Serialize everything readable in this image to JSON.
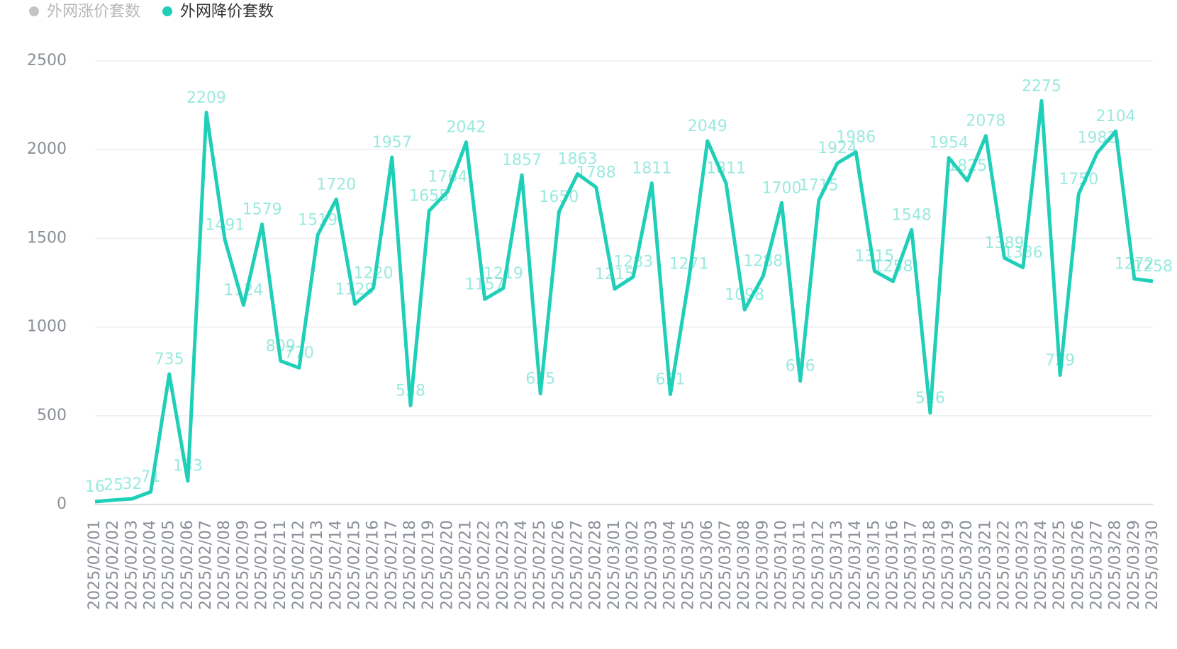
{
  "chart_data": {
    "type": "line",
    "legend_hidden": [
      {
        "name": "外网涨价套数",
        "color": "#c4c4c4"
      }
    ],
    "x": [
      "2025/02/01",
      "2025/02/02",
      "2025/02/03",
      "2025/02/04",
      "2025/02/05",
      "2025/02/06",
      "2025/02/07",
      "2025/02/08",
      "2025/02/09",
      "2025/02/10",
      "2025/02/11",
      "2025/02/12",
      "2025/02/13",
      "2025/02/14",
      "2025/02/15",
      "2025/02/16",
      "2025/02/17",
      "2025/02/18",
      "2025/02/19",
      "2025/02/20",
      "2025/02/21",
      "2025/02/22",
      "2025/02/23",
      "2025/02/24",
      "2025/02/25",
      "2025/02/26",
      "2025/02/27",
      "2025/02/28",
      "2025/03/01",
      "2025/03/02",
      "2025/03/03",
      "2025/03/04",
      "2025/03/05",
      "2025/03/06",
      "2025/03/07",
      "2025/03/08",
      "2025/03/09",
      "2025/03/10",
      "2025/03/11",
      "2025/03/12",
      "2025/03/13",
      "2025/03/14",
      "2025/03/15",
      "2025/03/16",
      "2025/03/17",
      "2025/03/18",
      "2025/03/19",
      "2025/03/20",
      "2025/03/21",
      "2025/03/22",
      "2025/03/23",
      "2025/03/24",
      "2025/03/25",
      "2025/03/26",
      "2025/03/27",
      "2025/03/28",
      "2025/03/29",
      "2025/03/30"
    ],
    "series": [
      {
        "name": "外网降价套数",
        "color": "#1fcfb8",
        "values": [
          16,
          25,
          32,
          71,
          735,
          133,
          2209,
          1491,
          1124,
          1579,
          809,
          770,
          1519,
          1720,
          1129,
          1220,
          1957,
          558,
          1655,
          1764,
          2042,
          1157,
          1219,
          1857,
          625,
          1650,
          1863,
          1788,
          1215,
          1283,
          1811,
          621,
          1271,
          2049,
          1811,
          1098,
          1288,
          1700,
          696,
          1715,
          1924,
          1986,
          1315,
          1258,
          1548,
          516,
          1954,
          1825,
          2078,
          1389,
          1336,
          2275,
          729,
          1750,
          1982,
          2104,
          1272,
          1258
        ]
      }
    ],
    "ylim": [
      0,
      2500
    ],
    "yticks": [
      0,
      500,
      1000,
      1500,
      2000,
      2500
    ],
    "grid": true,
    "legend": "top-left"
  }
}
